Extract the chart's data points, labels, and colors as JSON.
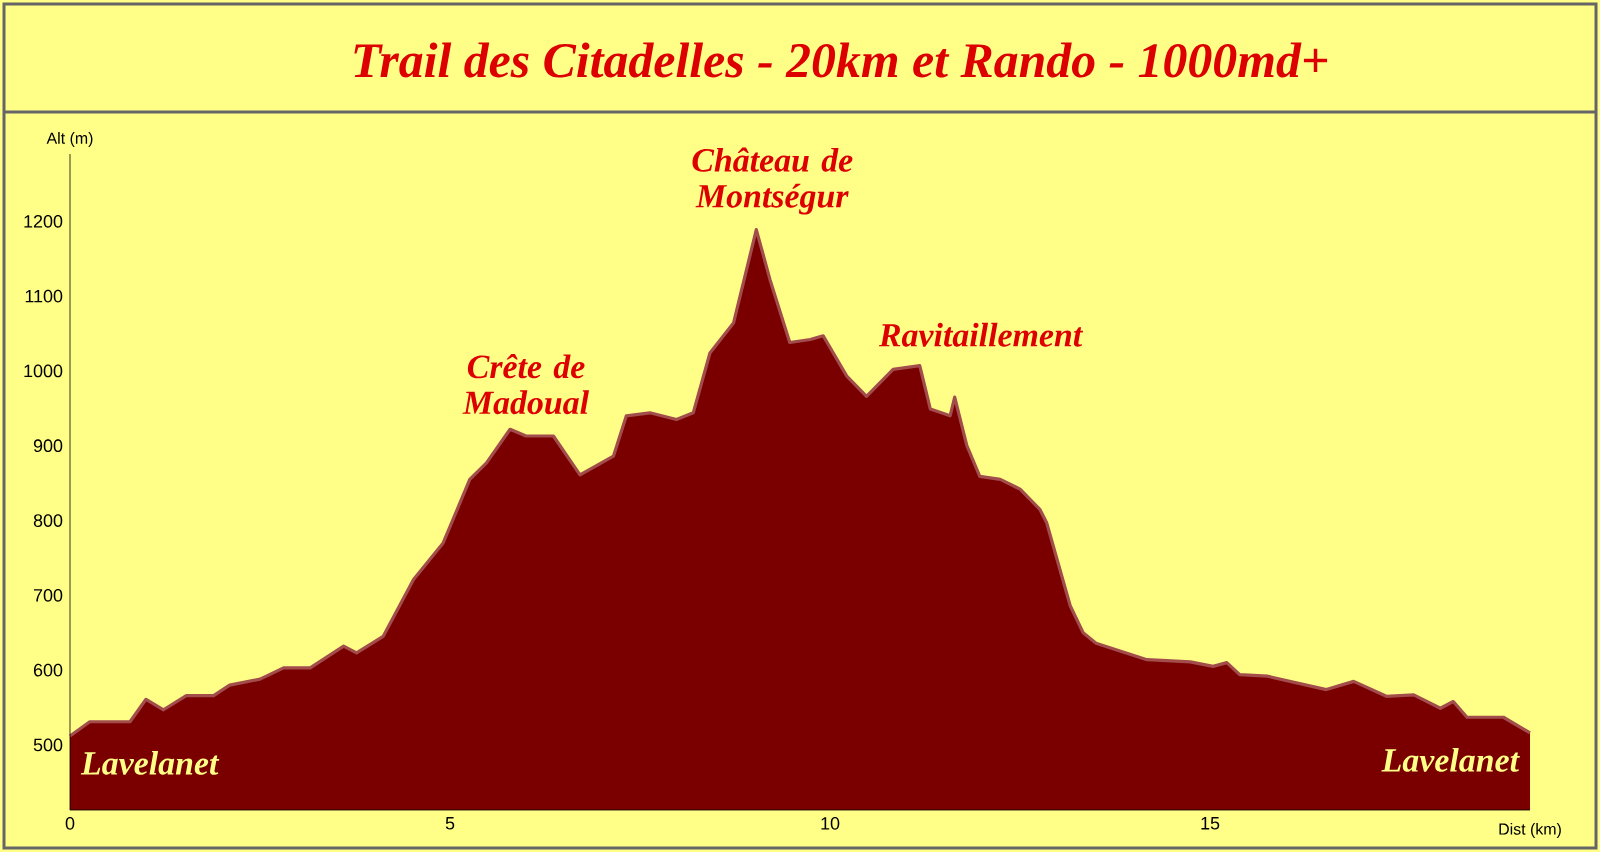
{
  "chart_data": {
    "type": "area",
    "title": "Trail des Citadelles - 20km et Rando - 1000md+",
    "xlabel": "Dist (km)",
    "ylabel": "Alt (m)",
    "x": [
      0,
      0.26,
      0.79,
      1.0,
      1.23,
      1.53,
      1.89,
      2.1,
      2.5,
      2.81,
      3.16,
      3.6,
      3.77,
      4.12,
      4.52,
      4.91,
      5.26,
      5.48,
      5.79,
      6.0,
      6.36,
      6.71,
      7.15,
      7.32,
      7.63,
      7.98,
      8.2,
      8.42,
      8.73,
      9.03,
      9.21,
      9.47,
      9.74,
      9.91,
      10.22,
      10.48,
      10.83,
      11.18,
      11.32,
      11.58,
      11.64,
      11.8,
      11.97,
      12.24,
      12.5,
      12.76,
      12.85,
      13.16,
      13.33,
      13.5,
      14.17,
      14.74,
      15.04,
      15.22,
      15.39,
      15.75,
      16.53,
      16.89,
      17.32,
      17.68,
      18.03,
      18.2,
      18.38,
      18.86,
      19.21
    ],
    "series": [
      {
        "color": "#7a0000",
        "values": [
          512,
          531,
          531,
          561,
          547,
          566,
          566,
          580,
          588,
          603,
          603,
          632,
          623,
          645,
          721,
          770,
          855,
          877,
          922,
          913,
          913,
          861,
          886,
          940,
          944,
          935,
          944,
          1024,
          1064,
          1189,
          1122,
          1038,
          1042,
          1047,
          993,
          966,
          1002,
          1007,
          949,
          940,
          965,
          900,
          859,
          855,
          842,
          815,
          797,
          686,
          650,
          636,
          614,
          611,
          605,
          610,
          594,
          592,
          574,
          585,
          565,
          567,
          549,
          558,
          537,
          537,
          516
        ]
      }
    ],
    "xlim": [
      0,
      19.21
    ],
    "ylim": [
      413,
      1290
    ],
    "xticks": [
      0,
      5,
      10,
      15
    ],
    "yticks": [
      500,
      600,
      700,
      800,
      900,
      1000,
      1100,
      1200
    ],
    "annotations": [
      {
        "text": "Lavelanet",
        "x": 0,
        "y": 512
      },
      {
        "text": "Crête de Madoual",
        "x": 5.79,
        "y": 922
      },
      {
        "text": "Château de Montségur",
        "x": 9.03,
        "y": 1189
      },
      {
        "text": "Ravitaillement",
        "x": 11.18,
        "y": 1007
      },
      {
        "text": "Lavelanet",
        "x": 19.21,
        "y": 516
      }
    ]
  }
}
